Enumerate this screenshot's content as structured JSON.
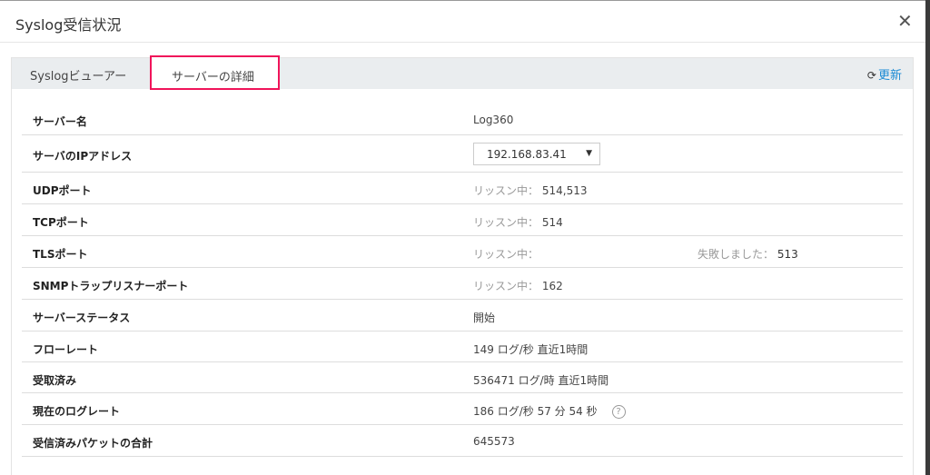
{
  "dialog": {
    "title": "Syslog受信状況",
    "close_icon": "close-icon"
  },
  "tabs": [
    {
      "label": "Syslogビューアー"
    },
    {
      "label": "サーバーの詳細",
      "active": true
    }
  ],
  "refresh": {
    "label": "更新",
    "icon": "refresh-icon"
  },
  "accent": "#f0145a",
  "rows": [
    {
      "label": "サーバー名",
      "value": "Log360"
    },
    {
      "label": "サーバのIPアドレス",
      "value": "192.168.83.41"
    },
    {
      "label": "UDPポート",
      "prefix": "リッスン中：",
      "value": "514,513"
    },
    {
      "label": "TCPポート",
      "prefix": "リッスン中：",
      "value": "514"
    },
    {
      "label": "TLSポート",
      "prefix": "リッスン中：",
      "fail_prefix": "失敗しました：",
      "fail_value": "513"
    },
    {
      "label": "SNMPトラップリスナーポート",
      "prefix": "リッスン中：",
      "value": "162"
    },
    {
      "label": "サーバーステータス",
      "value": "開始"
    },
    {
      "label": "フローレート",
      "value": "149 ログ/秒 直近1時間"
    },
    {
      "label": "受取済み",
      "value": "536471 ログ/時 直近1時間"
    },
    {
      "label": "現在のログレート",
      "value": "186 ログ/秒 57 分 54 秒",
      "help": "?"
    },
    {
      "label": "受信済みパケットの合計",
      "value": "645573"
    }
  ]
}
